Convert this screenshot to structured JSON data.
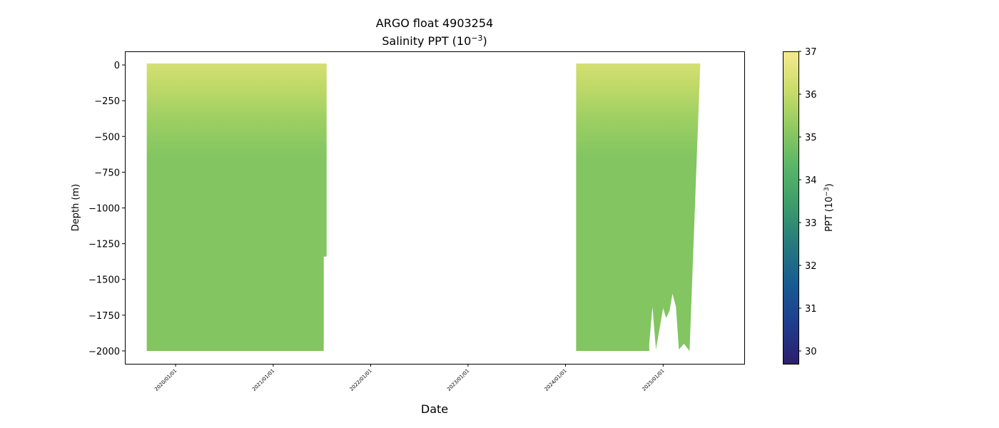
{
  "chart_data": {
    "type": "heatmap",
    "title": "ARGO float 4903254",
    "subtitle_main": "Salinity PPT (10",
    "subtitle_exp": "−3",
    "subtitle_close": ")",
    "xlabel": "Date",
    "ylabel": "Depth (m)",
    "x_axis": {
      "type": "date",
      "range": [
        "2019-06-25",
        "2025-11-01"
      ],
      "ticks": [
        "2020/01/01",
        "2021/01/01",
        "2022/01/01",
        "2023/01/01",
        "2024/01/01",
        "2025/01/01"
      ]
    },
    "y_axis": {
      "range": [
        -2090,
        95
      ],
      "ticks": [
        0,
        -250,
        -500,
        -750,
        -1000,
        -1250,
        -1500,
        -1750,
        -2000
      ],
      "tick_labels": [
        "0",
        "−250",
        "−500",
        "−750",
        "−1000",
        "−1250",
        "−1500",
        "−1750",
        "−2000"
      ]
    },
    "colorbar": {
      "label_main": "PPT (10",
      "label_exp": "−3",
      "label_close": ")",
      "range": [
        29.7,
        37.0
      ],
      "ticks": [
        30,
        31,
        32,
        33,
        34,
        35,
        36,
        37
      ],
      "colormap": [
        "#2d1e6e",
        "#1e3d8c",
        "#175a93",
        "#24787f",
        "#3b9a6b",
        "#56b567",
        "#8cc95f",
        "#c9dc6a",
        "#f6ea8f"
      ]
    },
    "grid": false,
    "segments": [
      {
        "start": "2019-09-15",
        "end": "2021-07-20",
        "bottom_depth": -2000,
        "top_depth": 0,
        "deep_salinity": 35.0,
        "surface_salinity": 36.3,
        "last_profile_bottom": -1340
      },
      {
        "start": "2024-02-10",
        "end": "2025-05-20",
        "bottom_depth": -2000,
        "top_depth": 0,
        "deep_salinity": 35.0,
        "surface_salinity": 36.3,
        "late_profile_bottoms": [
          {
            "date": "2024-11-10",
            "depth": -1950
          },
          {
            "date": "2024-11-22",
            "depth": -1690
          },
          {
            "date": "2024-12-05",
            "depth": -1990
          },
          {
            "date": "2024-12-20",
            "depth": -1830
          },
          {
            "date": "2025-01-01",
            "depth": -1700
          },
          {
            "date": "2025-01-12",
            "depth": -1770
          },
          {
            "date": "2025-01-25",
            "depth": -1720
          },
          {
            "date": "2025-02-05",
            "depth": -1600
          },
          {
            "date": "2025-02-18",
            "depth": -1690
          },
          {
            "date": "2025-03-01",
            "depth": -1990
          },
          {
            "date": "2025-03-20",
            "depth": -1950
          },
          {
            "date": "2025-04-10",
            "depth": -2000
          }
        ]
      }
    ]
  }
}
